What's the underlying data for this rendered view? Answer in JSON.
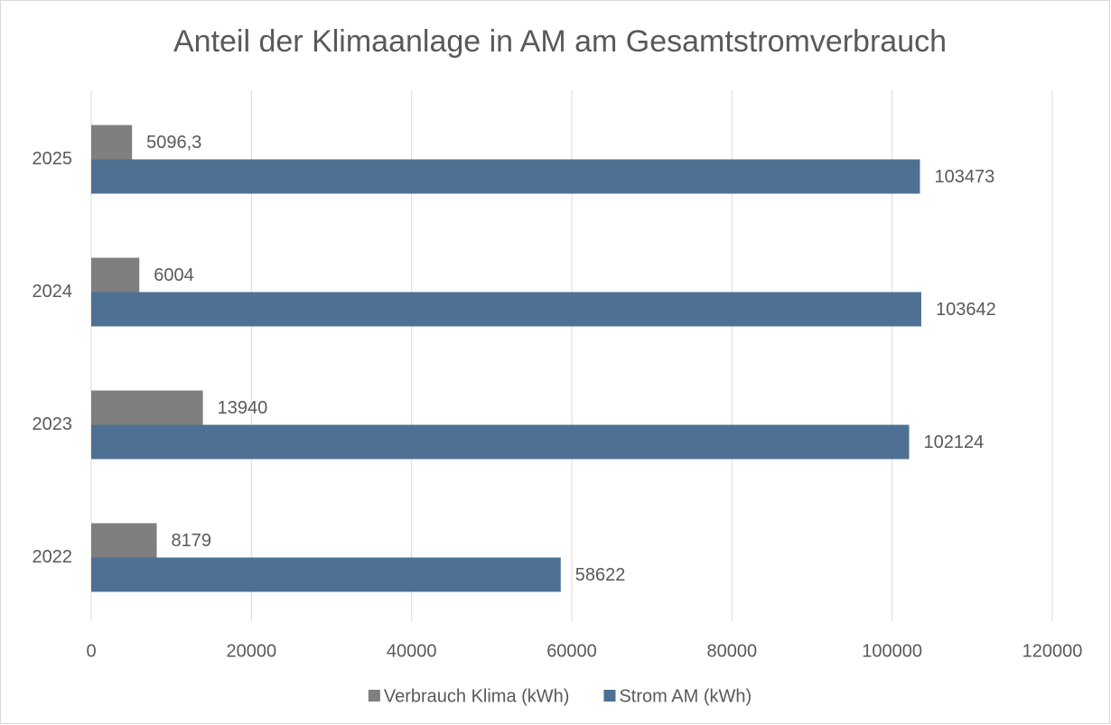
{
  "chart_data": {
    "type": "bar",
    "orientation": "horizontal",
    "title": "Anteil der Klimaanlage in AM am Gesamtstromverbrauch",
    "categories": [
      "2022",
      "2023",
      "2024",
      "2025"
    ],
    "series": [
      {
        "name": "Verbrauch Klima (kWh)",
        "color": "#7f7f7f",
        "values": [
          8179,
          13940,
          6004,
          5096.3
        ],
        "value_labels": [
          "8179",
          "13940",
          "6004",
          "5096,3"
        ]
      },
      {
        "name": "Strom AM (kWh)",
        "color": "#4e7093",
        "values": [
          58622,
          102124,
          103642,
          103473
        ]
      }
    ],
    "xlim": [
      0,
      120000
    ],
    "xticks": [
      0,
      20000,
      40000,
      60000,
      80000,
      100000,
      120000
    ],
    "grid": true,
    "legend": "bottom"
  }
}
